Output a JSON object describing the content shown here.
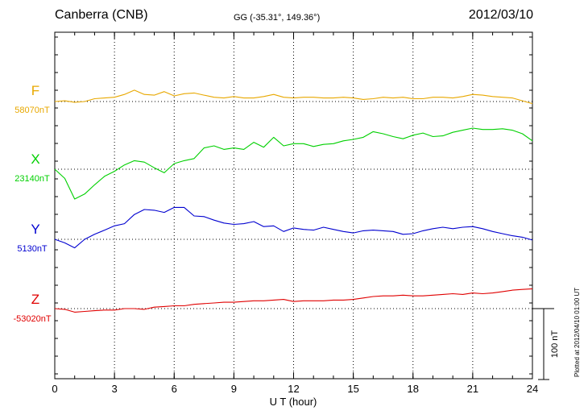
{
  "header": {
    "station": "Canberra (CNB)",
    "coords": "GG (-35.31°, 149.36°)",
    "date": "2012/03/10"
  },
  "footer": {
    "plotted": "Plotted at 2012/04/10 01:00 UT"
  },
  "colors": {
    "F": "#e8a800",
    "X": "#00d000",
    "Y": "#0000d0",
    "Z": "#e00000"
  },
  "chart_data": {
    "type": "line",
    "title": "Canberra (CNB)",
    "xlabel": "U T (hour)",
    "ylabel": "",
    "xlim": [
      0,
      24
    ],
    "x_ticks": [
      "0",
      "3",
      "6",
      "9",
      "12",
      "15",
      "18",
      "21",
      "24"
    ],
    "scale_bar": {
      "label": "100 nT",
      "value": 100
    },
    "grid": true,
    "x": [
      0,
      0.5,
      1,
      1.5,
      2,
      2.5,
      3,
      3.5,
      4,
      4.5,
      5,
      5.5,
      6,
      6.5,
      7,
      7.5,
      8,
      8.5,
      9,
      9.5,
      10,
      10.5,
      11,
      11.5,
      12,
      12.5,
      13,
      13.5,
      14,
      14.5,
      15,
      15.5,
      16,
      16.5,
      17,
      17.5,
      18,
      18.5,
      19,
      19.5,
      20,
      20.5,
      21,
      21.5,
      22,
      22.5,
      23,
      23.5,
      24
    ],
    "series": [
      {
        "name": "F",
        "base_label": "58070nT",
        "base": 58070,
        "values": [
          58070,
          58071,
          58069,
          58070,
          58074,
          58075,
          58076,
          58080,
          58086,
          58080,
          58079,
          58084,
          58078,
          58081,
          58082,
          58079,
          58076,
          58075,
          58077,
          58075,
          58075,
          58077,
          58080,
          58076,
          58075,
          58076,
          58076,
          58075,
          58075,
          58076,
          58075,
          58073,
          58074,
          58076,
          58075,
          58076,
          58074,
          58074,
          58076,
          58076,
          58075,
          58077,
          58080,
          58079,
          58077,
          58076,
          58075,
          58071,
          58067
        ]
      },
      {
        "name": "X",
        "base_label": "23140nT",
        "base": 23140,
        "values": [
          23140,
          23127,
          23098,
          23105,
          23118,
          23130,
          23137,
          23146,
          23152,
          23150,
          23142,
          23135,
          23148,
          23152,
          23155,
          23170,
          23173,
          23168,
          23170,
          23168,
          23178,
          23171,
          23185,
          23173,
          23176,
          23176,
          23172,
          23175,
          23176,
          23180,
          23182,
          23185,
          23193,
          23190,
          23186,
          23183,
          23188,
          23191,
          23186,
          23187,
          23192,
          23195,
          23198,
          23196,
          23196,
          23197,
          23195,
          23190,
          23180
        ]
      },
      {
        "name": "Y",
        "base_label": "5130nT",
        "base": 5130,
        "values": [
          5130,
          5125,
          5118,
          5130,
          5137,
          5143,
          5149,
          5152,
          5165,
          5172,
          5171,
          5168,
          5175,
          5175,
          5163,
          5162,
          5157,
          5153,
          5151,
          5152,
          5155,
          5148,
          5149,
          5141,
          5146,
          5144,
          5143,
          5147,
          5144,
          5141,
          5139,
          5142,
          5143,
          5142,
          5141,
          5137,
          5138,
          5142,
          5145,
          5147,
          5145,
          5147,
          5148,
          5145,
          5141,
          5138,
          5135,
          5133,
          5129
        ]
      },
      {
        "name": "Z",
        "base_label": "-53020nT",
        "base": -53020,
        "values": [
          -53020,
          -53021,
          -53025,
          -53024,
          -53023,
          -53022,
          -53022,
          -53020,
          -53020,
          -53021,
          -53018,
          -53017,
          -53016,
          -53016,
          -53014,
          -53013,
          -53012,
          -53011,
          -53011,
          -53010,
          -53009,
          -53009,
          -53008,
          -53007,
          -53010,
          -53009,
          -53009,
          -53009,
          -53008,
          -53008,
          -53007,
          -53005,
          -53003,
          -53002,
          -53002,
          -53001,
          -53002,
          -53002,
          -53001,
          -53000,
          -52999,
          -53000,
          -52998,
          -52999,
          -52998,
          -52996,
          -52994,
          -52993,
          -52992
        ]
      }
    ]
  }
}
